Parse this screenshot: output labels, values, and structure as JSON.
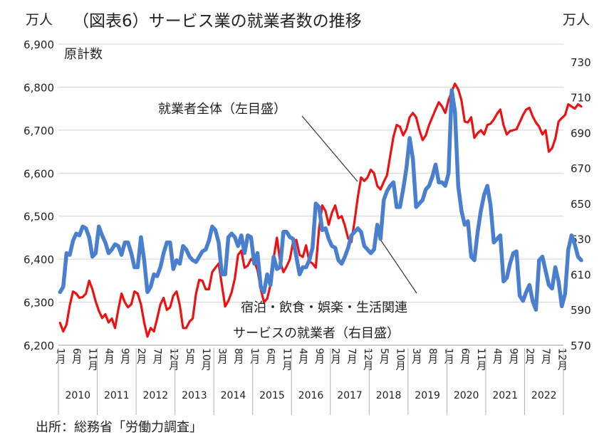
{
  "chart_data": {
    "type": "line",
    "title": "（図表6）サービス業の就業者数の推移",
    "left_unit": "万人",
    "right_unit": "万人",
    "subtitle": "原計数",
    "source": "出所：総務省「労働力調査」",
    "y_left": {
      "min": 6200,
      "max": 6900,
      "ticks": [
        "6,200",
        "6,300",
        "6,400",
        "6,500",
        "6,600",
        "6,700",
        "6,800",
        "6,900"
      ]
    },
    "y_right": {
      "min": 570,
      "max": 740,
      "ticks": [
        "570",
        "590",
        "610",
        "630",
        "650",
        "670",
        "690",
        "710",
        "730"
      ]
    },
    "x_month_labels": [
      "1月",
      "6月",
      "11月",
      "4月",
      "9月",
      "2月",
      "7月",
      "12月",
      "5月",
      "10月",
      "3月",
      "8月",
      "1月",
      "6月",
      "11月",
      "4月",
      "9月",
      "2月",
      "7月",
      "12月",
      "5月",
      "10月",
      "3月",
      "8月",
      "1月",
      "6月",
      "11月",
      "4月",
      "9月",
      "2月",
      "7月",
      "12月"
    ],
    "years": [
      "2010",
      "2011",
      "2012",
      "2013",
      "2014",
      "2015",
      "2016",
      "2017",
      "2018",
      "2019",
      "2020",
      "2021",
      "2022"
    ],
    "grid": true,
    "series": [
      {
        "name": "就業者全体（左目盛）",
        "axis": "left",
        "color": "#ee1111",
        "start": "2010-01",
        "values": [
          6252,
          6232,
          6248,
          6292,
          6325,
          6320,
          6310,
          6312,
          6320,
          6350,
          6330,
          6302,
          6280,
          6263,
          6272,
          6253,
          6262,
          6240,
          6283,
          6320,
          6300,
          6288,
          6295,
          6325,
          6320,
          6295,
          6253,
          6220,
          6240,
          6232,
          6262,
          6295,
          6310,
          6282,
          6288,
          6315,
          6325,
          6293,
          6240,
          6240,
          6255,
          6262,
          6320,
          6352,
          6350,
          6330,
          6330,
          6370,
          6380,
          6390,
          6340,
          6290,
          6303,
          6323,
          6355,
          6410,
          6420,
          6380,
          6385,
          6400,
          6395,
          6375,
          6330,
          6300,
          6308,
          6340,
          6403,
          6450,
          6395,
          6370,
          6383,
          6400,
          6440,
          6445,
          6410,
          6405,
          6432,
          6395,
          6390,
          6380,
          6470,
          6525,
          6512,
          6480,
          6508,
          6525,
          6495,
          6500,
          6478,
          6448,
          6440,
          6490,
          6545,
          6590,
          6582,
          6590,
          6608,
          6600,
          6570,
          6562,
          6580,
          6595,
          6640,
          6685,
          6712,
          6708,
          6688,
          6702,
          6730,
          6740,
          6730,
          6700,
          6677,
          6688,
          6712,
          6730,
          6748,
          6765,
          6755,
          6740,
          6770,
          6790,
          6808,
          6795,
          6770,
          6720,
          6718,
          6730,
          6682,
          6693,
          6700,
          6690,
          6712,
          6715,
          6725,
          6738,
          6748,
          6712,
          6690,
          6698,
          6700,
          6702,
          6718,
          6735,
          6748,
          6752,
          6732,
          6718,
          6708,
          6690,
          6700,
          6650,
          6658,
          6680,
          6720,
          6728,
          6735,
          6760,
          6755,
          6750,
          6760,
          6755
        ]
      },
      {
        "name": "宿泊・飲食・娯楽・生活関連サービスの就業者（右目盛）",
        "axis": "right",
        "color": "#4a7fd0",
        "start": "2010-01",
        "values": [
          600,
          603,
          622,
          621,
          629,
          633,
          632,
          637,
          636,
          631,
          620,
          622,
          637,
          632,
          628,
          622,
          624,
          627,
          626,
          621,
          628,
          628,
          622,
          614,
          614,
          631,
          618,
          600,
          603,
          610,
          609,
          614,
          622,
          628,
          628,
          613,
          618,
          616,
          626,
          624,
          620,
          618,
          617,
          620,
          623,
          624,
          629,
          637,
          635,
          628,
          610,
          610,
          631,
          633,
          631,
          626,
          632,
          622,
          632,
          631,
          616,
          622,
          603,
          600,
          610,
          604,
          620,
          613,
          614,
          634,
          634,
          631,
          630,
          620,
          610,
          614,
          614,
          618,
          625,
          650,
          648,
          635,
          636,
          630,
          626,
          625,
          618,
          616,
          620,
          625,
          632,
          634,
          636,
          634,
          626,
          624,
          622,
          624,
          638,
          630,
          652,
          657,
          660,
          662,
          648,
          648,
          658,
          670,
          687,
          675,
          648,
          650,
          652,
          658,
          660,
          665,
          672,
          662,
          662,
          660,
          667,
          714,
          702,
          660,
          646,
          638,
          640,
          620,
          618,
          634,
          646,
          655,
          660,
          649,
          628,
          630,
          632,
          606,
          608,
          616,
          622,
          623,
          598,
          595,
          600,
          604,
          595,
          590,
          618,
          620,
          612,
          604,
          602,
          614,
          606,
          592,
          599,
          624,
          632,
          627,
          620,
          618
        ]
      }
    ],
    "annotations": [
      {
        "text": "就業者全体（左目盛）"
      },
      {
        "text_line1": "宿泊・飲食・娯楽・生活関連",
        "text_line2": "サービスの就業者（右目盛）"
      }
    ]
  }
}
